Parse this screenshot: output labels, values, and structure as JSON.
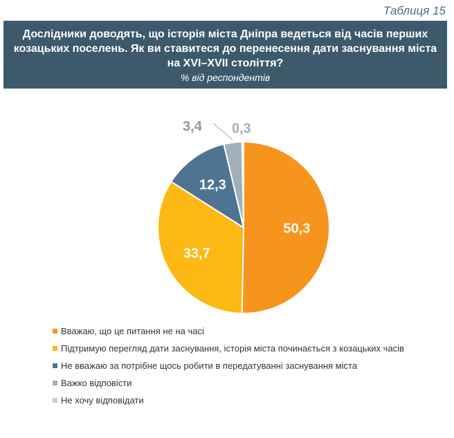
{
  "table_label": "Таблиця 15",
  "header": {
    "question": "Дослідники доводять, що історія міста Дніпра ведеться від часів перших козацьких поселень. Як ви ставитеся до перенесення дати заснування міста на XVI–XVII століття?",
    "subtitle": "% від респондентів"
  },
  "chart_data": {
    "type": "pie",
    "series": [
      {
        "name": "Вважаю, що це питання не на часі",
        "value": 50.3,
        "label": "50,3",
        "color": "#f7941d"
      },
      {
        "name": "Підтримую перегляд дати заснування, історія міста починається з козацьких часів",
        "value": 33.7,
        "label": "33,7",
        "color": "#fdb813"
      },
      {
        "name": "Не вважаю за потрібне щось робити в передатуванні заснування міста",
        "value": 12.3,
        "label": "12,3",
        "color": "#4e7491"
      },
      {
        "name": "Важко відповісти",
        "value": 3.4,
        "label": "3,4",
        "color": "#a2afb8"
      },
      {
        "name": "Не хочу відповідати",
        "value": 0.3,
        "label": "0,3",
        "color": "#c5ced4"
      }
    ],
    "legend_position": "bottom-left"
  }
}
